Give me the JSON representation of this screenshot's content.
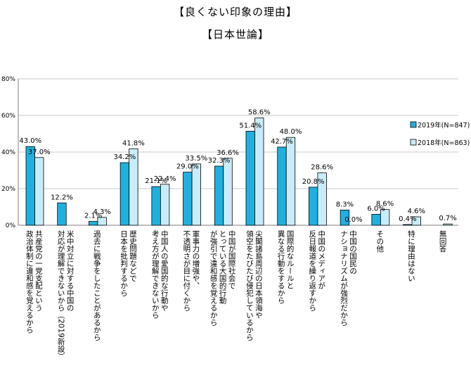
{
  "chart_data": {
    "type": "bar",
    "title": "【良くない印象の理由】",
    "subtitle": "【日本世論】",
    "y_ticks": [
      "0%",
      "20%",
      "40%",
      "60%",
      "80%"
    ],
    "ylim": [
      0,
      80
    ],
    "grid": true,
    "legend_position": "right",
    "categories": [
      {
        "lines": [
          "共産党の一党支配という",
          "政治体制に違和感を覚えるから"
        ]
      },
      {
        "lines": [
          "米中対立に対する中国の",
          "対応が理解できないから（2019新設）"
        ]
      },
      {
        "lines": [
          "過去に戦争をしたことがあるから"
        ]
      },
      {
        "lines": [
          "歴史問題などで",
          "日本を批判するから"
        ]
      },
      {
        "lines": [
          "中国人の愛国的な行動や",
          "考え方が理解できないから"
        ]
      },
      {
        "lines": [
          "軍事力の増強や、",
          "不透明さが目に付くから"
        ]
      },
      {
        "lines": [
          "中国が国際社会で",
          "とっている大国的行動",
          "が強引で違和感を覚えるから"
        ]
      },
      {
        "lines": [
          "尖閣諸島周辺の日本領海や",
          "領空をたびたび侵犯しているから"
        ]
      },
      {
        "lines": [
          "国際的なルールと",
          "異なる行動をするから"
        ]
      },
      {
        "lines": [
          "中国のメディアが",
          "反日報道を繰り返すから"
        ]
      },
      {
        "lines": [
          "中国の国民の",
          "ナショナリズムが強烈だから"
        ]
      },
      {
        "lines": [
          "その他"
        ]
      },
      {
        "lines": [
          "特に理由はない"
        ]
      },
      {
        "lines": [
          "無回答"
        ]
      }
    ],
    "series": [
      {
        "name": "2019年(N=847)",
        "color": "#1EB1DF",
        "values": [
          43.0,
          12.2,
          2.1,
          34.2,
          21.1,
          29.0,
          32.3,
          51.4,
          42.7,
          20.8,
          8.3,
          6.0,
          0.4,
          null
        ],
        "labels": [
          "43.0%",
          "12.2%",
          "2.1%",
          "34.2%",
          "21.1%",
          "29.0%",
          "32.3%",
          "51.4%",
          "42.7%",
          "20.8%",
          "8.3%",
          "6.0%",
          "0.4%",
          ""
        ]
      },
      {
        "name": "2018年(N=863)",
        "color": "#C9ECFA",
        "values": [
          37.0,
          null,
          4.3,
          41.8,
          22.4,
          33.5,
          36.6,
          58.6,
          48.0,
          28.6,
          0.0,
          8.6,
          4.6,
          0.7
        ],
        "labels": [
          "37.0%",
          "",
          "4.3%",
          "41.8%",
          "22.4%",
          "33.5%",
          "36.6%",
          "58.6%",
          "48.0%",
          "28.6%",
          "0.0%",
          "8.6%",
          "4.6%",
          "0.7%"
        ]
      }
    ]
  }
}
